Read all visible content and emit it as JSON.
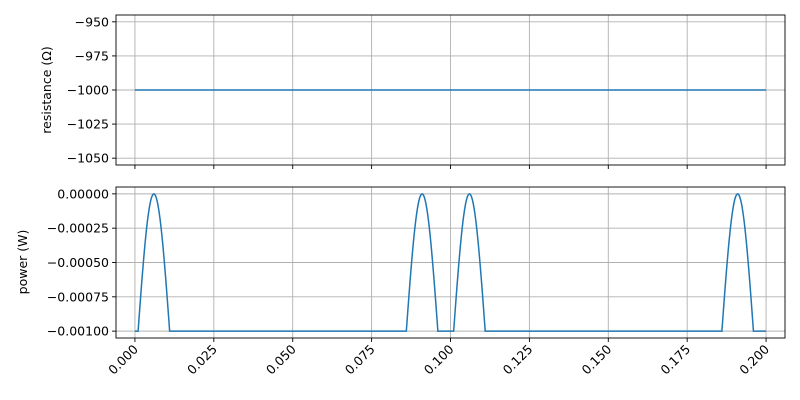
{
  "chart_data": [
    {
      "type": "line",
      "ylabel": "resistance (Ω)",
      "ylim": [
        -1055,
        -945
      ],
      "yticks": [
        -950,
        -975,
        -1000,
        -1025,
        -1050
      ],
      "ytick_labels": [
        "−950",
        "−975",
        "−1000",
        "−1025",
        "−1050"
      ],
      "xlim": [
        -0.006,
        0.206
      ],
      "xticks": [
        0.0,
        0.025,
        0.05,
        0.075,
        0.1,
        0.125,
        0.15,
        0.175,
        0.2
      ],
      "xtick_labels_visible": false,
      "grid": true,
      "color": "#1f77b4",
      "series": [
        {
          "x": [
            0.0,
            0.2
          ],
          "y": [
            -1000,
            -1000
          ]
        }
      ]
    },
    {
      "type": "line",
      "ylabel": "power (W)",
      "ylim": [
        -0.00105,
        5e-05
      ],
      "yticks": [
        0.0,
        -0.00025,
        -0.0005,
        -0.00075,
        -0.001
      ],
      "ytick_labels": [
        "0.00000",
        "−0.00025",
        "−0.00050",
        "−0.00075",
        "−0.00100"
      ],
      "xlim": [
        -0.006,
        0.206
      ],
      "xticks": [
        0.0,
        0.025,
        0.05,
        0.075,
        0.1,
        0.125,
        0.15,
        0.175,
        0.2
      ],
      "xtick_labels": [
        "0.000",
        "0.025",
        "0.050",
        "0.075",
        "0.100",
        "0.125",
        "0.150",
        "0.175",
        "0.200"
      ],
      "grid": true,
      "color": "#1f77b4",
      "series": [
        {
          "baseline": -0.001,
          "peak": 0.0,
          "pulses": [
            {
              "start": 0.001,
              "end": 0.011
            },
            {
              "start": 0.086,
              "end": 0.096
            },
            {
              "start": 0.101,
              "end": 0.111
            },
            {
              "start": 0.186,
              "end": 0.196
            }
          ],
          "x_end": 0.2
        }
      ]
    }
  ]
}
